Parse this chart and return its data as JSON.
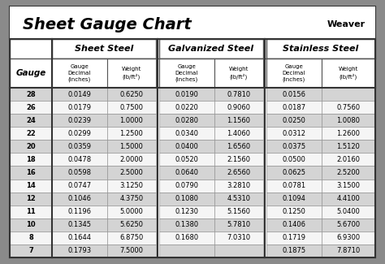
{
  "title": "Sheet Gauge Chart",
  "bg_outer": "#8a8a8a",
  "bg_white": "#ffffff",
  "bg_title": "#ffffff",
  "row_gray": "#d4d4d4",
  "row_white": "#f5f5f5",
  "header_bg": "#ffffff",
  "border_dark": "#333333",
  "border_light": "#888888",
  "gauges": [
    28,
    26,
    24,
    22,
    20,
    18,
    16,
    14,
    12,
    11,
    10,
    8,
    7
  ],
  "sheet_steel_dec": [
    "0.0149",
    "0.0179",
    "0.0239",
    "0.0299",
    "0.0359",
    "0.0478",
    "0.0598",
    "0.0747",
    "0.1046",
    "0.1196",
    "0.1345",
    "0.1644",
    "0.1793"
  ],
  "sheet_steel_wt": [
    "0.6250",
    "0.7500",
    "1.0000",
    "1.2500",
    "1.5000",
    "2.0000",
    "2.5000",
    "3.1250",
    "4.3750",
    "5.0000",
    "5.6250",
    "6.8750",
    "7.5000"
  ],
  "galv_dec": [
    "0.0190",
    "0.0220",
    "0.0280",
    "0.0340",
    "0.0400",
    "0.0520",
    "0.0640",
    "0.0790",
    "0.1080",
    "0.1230",
    "0.1380",
    "0.1680",
    ""
  ],
  "galv_wt": [
    "0.7810",
    "0.9060",
    "1.1560",
    "1.4060",
    "1.6560",
    "2.1560",
    "2.6560",
    "3.2810",
    "4.5310",
    "5.1560",
    "5.7810",
    "7.0310",
    ""
  ],
  "ss_dec": [
    "0.0156",
    "0.0187",
    "0.0250",
    "0.0312",
    "0.0375",
    "0.0500",
    "0.0625",
    "0.0781",
    "0.1094",
    "0.1250",
    "0.1406",
    "0.1719",
    "0.1875"
  ],
  "ss_wt": [
    "",
    "0.7560",
    "1.0080",
    "1.2600",
    "1.5120",
    "2.0160",
    "2.5200",
    "3.1500",
    "4.4100",
    "5.0400",
    "5.6700",
    "6.9300",
    "7.8710"
  ],
  "figsize": [
    4.74,
    3.25
  ],
  "dpi": 100
}
